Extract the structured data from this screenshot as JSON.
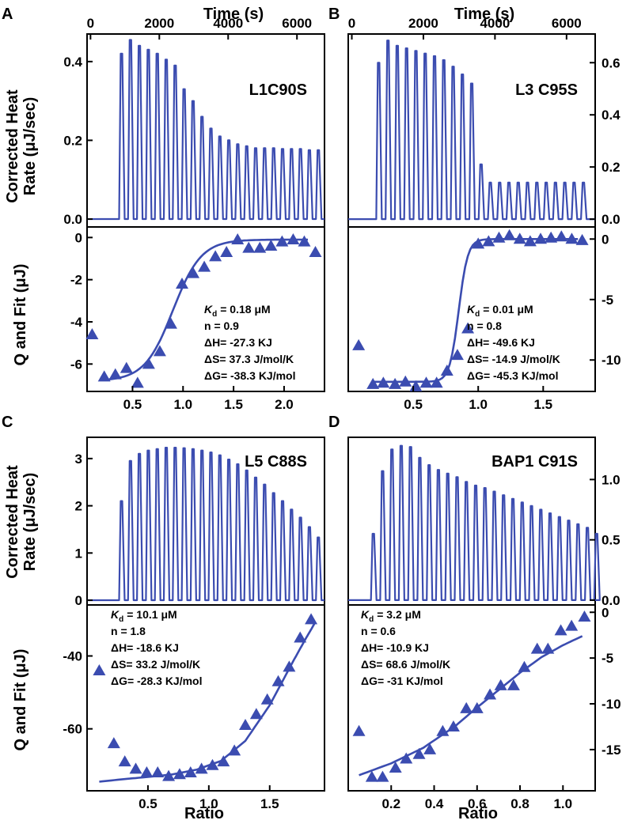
{
  "colors": {
    "trace": "#3b4cb0",
    "axis": "#000000",
    "background": "#ffffff"
  },
  "shared_labels": {
    "time_axis": "Time (s)",
    "heat_axis_line1": "Corrected Heat",
    "heat_axis_line2": "Rate (μJ/sec)",
    "fit_axis": "Q and Fit (μJ)",
    "ratio_axis": "Ratio"
  },
  "chart_data": [
    {
      "panel": "A",
      "type": "line",
      "title": "L1C90S",
      "thermogram": {
        "x_ticks": [
          0,
          2000,
          4000,
          6000
        ],
        "x_range": [
          -100,
          6800
        ],
        "y_ticks": [
          "0.0",
          "0.2",
          "0.4"
        ],
        "y_tick_values": [
          0,
          0.2,
          0.4
        ],
        "y_range": [
          -0.02,
          0.47
        ],
        "baseline": 0,
        "injection_start": 900,
        "injection_interval": 260,
        "peaks": [
          0.42,
          0.455,
          0.44,
          0.43,
          0.42,
          0.405,
          0.39,
          0.33,
          0.3,
          0.26,
          0.23,
          0.21,
          0.2,
          0.19,
          0.185,
          0.18,
          0.18,
          0.18,
          0.178,
          0.178,
          0.178,
          0.175,
          0.175
        ]
      },
      "binding": {
        "type": "scatter",
        "x_ticks": [
          "0.5",
          "1.0",
          "1.5",
          "2.0"
        ],
        "x_tick_values": [
          0.5,
          1.0,
          1.5,
          2.0
        ],
        "x_range": [
          0.05,
          2.4
        ],
        "y_ticks": [
          "0",
          "-2",
          "-4",
          "-6"
        ],
        "y_tick_values": [
          0,
          -2,
          -4,
          -6
        ],
        "y_range": [
          -7.3,
          0.5
        ],
        "x": [
          0.1,
          0.22,
          0.33,
          0.44,
          0.55,
          0.66,
          0.77,
          0.88,
          0.99,
          1.1,
          1.21,
          1.32,
          1.43,
          1.54,
          1.65,
          1.76,
          1.87,
          1.98,
          2.09,
          2.2,
          2.31
        ],
        "y": [
          -4.6,
          -6.6,
          -6.5,
          -6.2,
          -6.9,
          -6.0,
          -5.4,
          -4.1,
          -2.2,
          -1.7,
          -1.4,
          -0.9,
          -0.7,
          -0.1,
          -0.5,
          -0.5,
          -0.4,
          -0.2,
          -0.1,
          -0.2,
          -0.7
        ],
        "fit": {
          "n": 0.9,
          "lower": -6.8,
          "upper": -0.1,
          "width": 0.14
        },
        "annotations": {
          "kd_symbol": "K",
          "kd_sub": "d",
          "kd_value": "= 0.18 μM",
          "n": "n   = 0.9",
          "dH": "ΔH= -27.3 KJ",
          "dS": "ΔS= 37.3 J/mol/K",
          "dG": "ΔG= -38.3 KJ/mol"
        }
      }
    },
    {
      "panel": "B",
      "type": "line",
      "title": "L3 C95S",
      "thermogram": {
        "x_ticks": [
          0,
          2000,
          4000,
          6000
        ],
        "x_range": [
          -100,
          6800
        ],
        "y_ticks": [
          "0.0",
          "0.2",
          "0.4",
          "0.6"
        ],
        "y_tick_values": [
          0,
          0.2,
          0.4,
          0.6
        ],
        "y_range": [
          -0.03,
          0.71
        ],
        "baseline": 0,
        "injection_start": 750,
        "injection_interval": 260,
        "peaks": [
          0.6,
          0.685,
          0.665,
          0.655,
          0.645,
          0.635,
          0.625,
          0.61,
          0.585,
          0.555,
          0.52,
          0.21,
          0.14,
          0.14,
          0.14,
          0.14,
          0.14,
          0.14,
          0.14,
          0.14,
          0.14,
          0.14,
          0.14
        ]
      },
      "binding": {
        "type": "scatter",
        "x_ticks": [
          "0.5",
          "1.0",
          "1.5"
        ],
        "x_tick_values": [
          0.5,
          1.0,
          1.5
        ],
        "x_range": [
          0.0,
          1.9
        ],
        "y_ticks": [
          "0",
          "-5",
          "-10"
        ],
        "y_tick_values": [
          0,
          -5,
          -10
        ],
        "y_range": [
          -12.6,
          1.0
        ],
        "x": [
          0.08,
          0.19,
          0.27,
          0.36,
          0.44,
          0.52,
          0.6,
          0.68,
          0.76,
          0.84,
          0.92,
          1.0,
          1.08,
          1.16,
          1.24,
          1.32,
          1.4,
          1.48,
          1.56,
          1.64,
          1.72,
          1.8
        ],
        "y": [
          -8.8,
          -12.0,
          -11.9,
          -12.0,
          -11.8,
          -12.2,
          -11.9,
          -11.9,
          -10.9,
          -9.6,
          -7.4,
          -0.4,
          -0.2,
          0.1,
          0.3,
          0.0,
          -0.2,
          0.0,
          0.1,
          0.2,
          0.0,
          -0.1
        ],
        "fit": {
          "n": 0.85,
          "lower": -11.8,
          "upper": 0.0,
          "width": 0.035
        },
        "annotations": {
          "kd_symbol": "K",
          "kd_sub": "d",
          "kd_value": "= 0.01 μM",
          "n": "n   = 0.8",
          "dH": "ΔH= -49.6 KJ",
          "dS": "ΔS= -14.9 J/mol/K",
          "dG": "ΔG= -45.3 KJ/mol"
        }
      }
    },
    {
      "panel": "C",
      "type": "line",
      "title": "L5 C88S",
      "thermogram": {
        "x_range": [
          -100,
          6800
        ],
        "y_ticks": [
          "0",
          "1",
          "2",
          "3"
        ],
        "y_tick_values": [
          0,
          1,
          2,
          3
        ],
        "y_range": [
          -0.1,
          3.45
        ],
        "baseline": 0,
        "injection_start": 900,
        "injection_interval": 260,
        "peaks": [
          2.1,
          2.95,
          3.1,
          3.17,
          3.2,
          3.23,
          3.23,
          3.22,
          3.2,
          3.17,
          3.13,
          3.07,
          2.98,
          2.88,
          2.75,
          2.6,
          2.45,
          2.27,
          2.1,
          1.92,
          1.75,
          1.55,
          1.33
        ]
      },
      "binding": {
        "type": "scatter",
        "x_ticks": [
          "0.5",
          "1.0",
          "1.5"
        ],
        "x_tick_values": [
          0.5,
          1.0,
          1.5
        ],
        "x_range": [
          0.0,
          1.95
        ],
        "y_ticks": [
          "-40",
          "-60"
        ],
        "y_tick_values": [
          -40,
          -60
        ],
        "y_range": [
          -77,
          -26
        ],
        "x": [
          0.1,
          0.22,
          0.31,
          0.4,
          0.49,
          0.58,
          0.67,
          0.76,
          0.85,
          0.94,
          1.03,
          1.12,
          1.21,
          1.3,
          1.39,
          1.48,
          1.57,
          1.66,
          1.75,
          1.84
        ],
        "y": [
          -44,
          -64,
          -69,
          -71,
          -72,
          -72,
          -73,
          -72.5,
          -72,
          -71,
          -70,
          -69,
          -66,
          -59,
          -56,
          -52,
          -47,
          -43,
          -35,
          -30
        ],
        "fit_curve": [
          [
            0.1,
            -74.5
          ],
          [
            0.3,
            -73.8
          ],
          [
            0.5,
            -73.2
          ],
          [
            0.7,
            -72.5
          ],
          [
            0.9,
            -71.2
          ],
          [
            1.1,
            -68.8
          ],
          [
            1.3,
            -63.3
          ],
          [
            1.5,
            -53.5
          ],
          [
            1.7,
            -41.0
          ],
          [
            1.8,
            -35.0
          ],
          [
            1.87,
            -31.0
          ]
        ],
        "annotations": {
          "kd_symbol": "K",
          "kd_sub": "d",
          "kd_value": "= 10.1 μM",
          "n": "n   = 1.8",
          "dH": "ΔH= -18.6 KJ",
          "dS": "ΔS= 33.2 J/mol/K",
          "dG": "ΔG= -28.3 KJ/mol"
        }
      }
    },
    {
      "panel": "D",
      "type": "line",
      "title": "BAP1 C91S",
      "thermogram": {
        "x_range": [
          -100,
          6800
        ],
        "y_ticks": [
          "0.0",
          "0.5",
          "1.0"
        ],
        "y_tick_values": [
          0,
          0.5,
          1.0
        ],
        "y_range": [
          -0.04,
          1.35
        ],
        "baseline": 0,
        "injection_start": 600,
        "injection_interval": 260,
        "peaks": [
          0.55,
          1.07,
          1.25,
          1.28,
          1.27,
          1.18,
          1.12,
          1.08,
          1.05,
          1.02,
          0.98,
          0.95,
          0.93,
          0.9,
          0.87,
          0.84,
          0.81,
          0.78,
          0.75,
          0.72,
          0.69,
          0.66,
          0.63,
          0.6,
          0.55
        ]
      },
      "binding": {
        "type": "scatter",
        "x_ticks": [
          "0.2",
          "0.4",
          "0.6",
          "0.8",
          "1.0"
        ],
        "x_tick_values": [
          0.2,
          0.4,
          0.6,
          0.8,
          1.0
        ],
        "x_range": [
          0.0,
          1.15
        ],
        "y_ticks": [
          "0",
          "-5",
          "-10",
          "-15"
        ],
        "y_tick_values": [
          0,
          -5,
          -10,
          -15
        ],
        "y_range": [
          -19.5,
          0.8
        ],
        "x": [
          0.05,
          0.11,
          0.16,
          0.22,
          0.27,
          0.33,
          0.38,
          0.44,
          0.49,
          0.55,
          0.6,
          0.66,
          0.71,
          0.77,
          0.82,
          0.88,
          0.93,
          0.99,
          1.04,
          1.1
        ],
        "y": [
          -13,
          -18,
          -18,
          -17,
          -16,
          -15.5,
          -15,
          -13,
          -12.5,
          -10.5,
          -10.5,
          -9,
          -8,
          -8,
          -6,
          -4,
          -4,
          -2,
          -1.5,
          -0.5
        ],
        "fit_curve": [
          [
            0.05,
            -17.8
          ],
          [
            0.2,
            -16.5
          ],
          [
            0.35,
            -14.8
          ],
          [
            0.5,
            -12.4
          ],
          [
            0.6,
            -10.4
          ],
          [
            0.7,
            -8.5
          ],
          [
            0.8,
            -6.6
          ],
          [
            0.9,
            -4.9
          ],
          [
            1.0,
            -3.6
          ],
          [
            1.09,
            -2.6
          ]
        ],
        "annotations": {
          "kd_symbol": "K",
          "kd_sub": "d",
          "kd_value": "= 3.2 μM",
          "n": "n   = 0.6",
          "dH": "ΔH= -10.9 KJ",
          "dS": "ΔS= 68.6 J/mol/K",
          "dG": "ΔG= -31 KJ/mol"
        }
      }
    }
  ]
}
